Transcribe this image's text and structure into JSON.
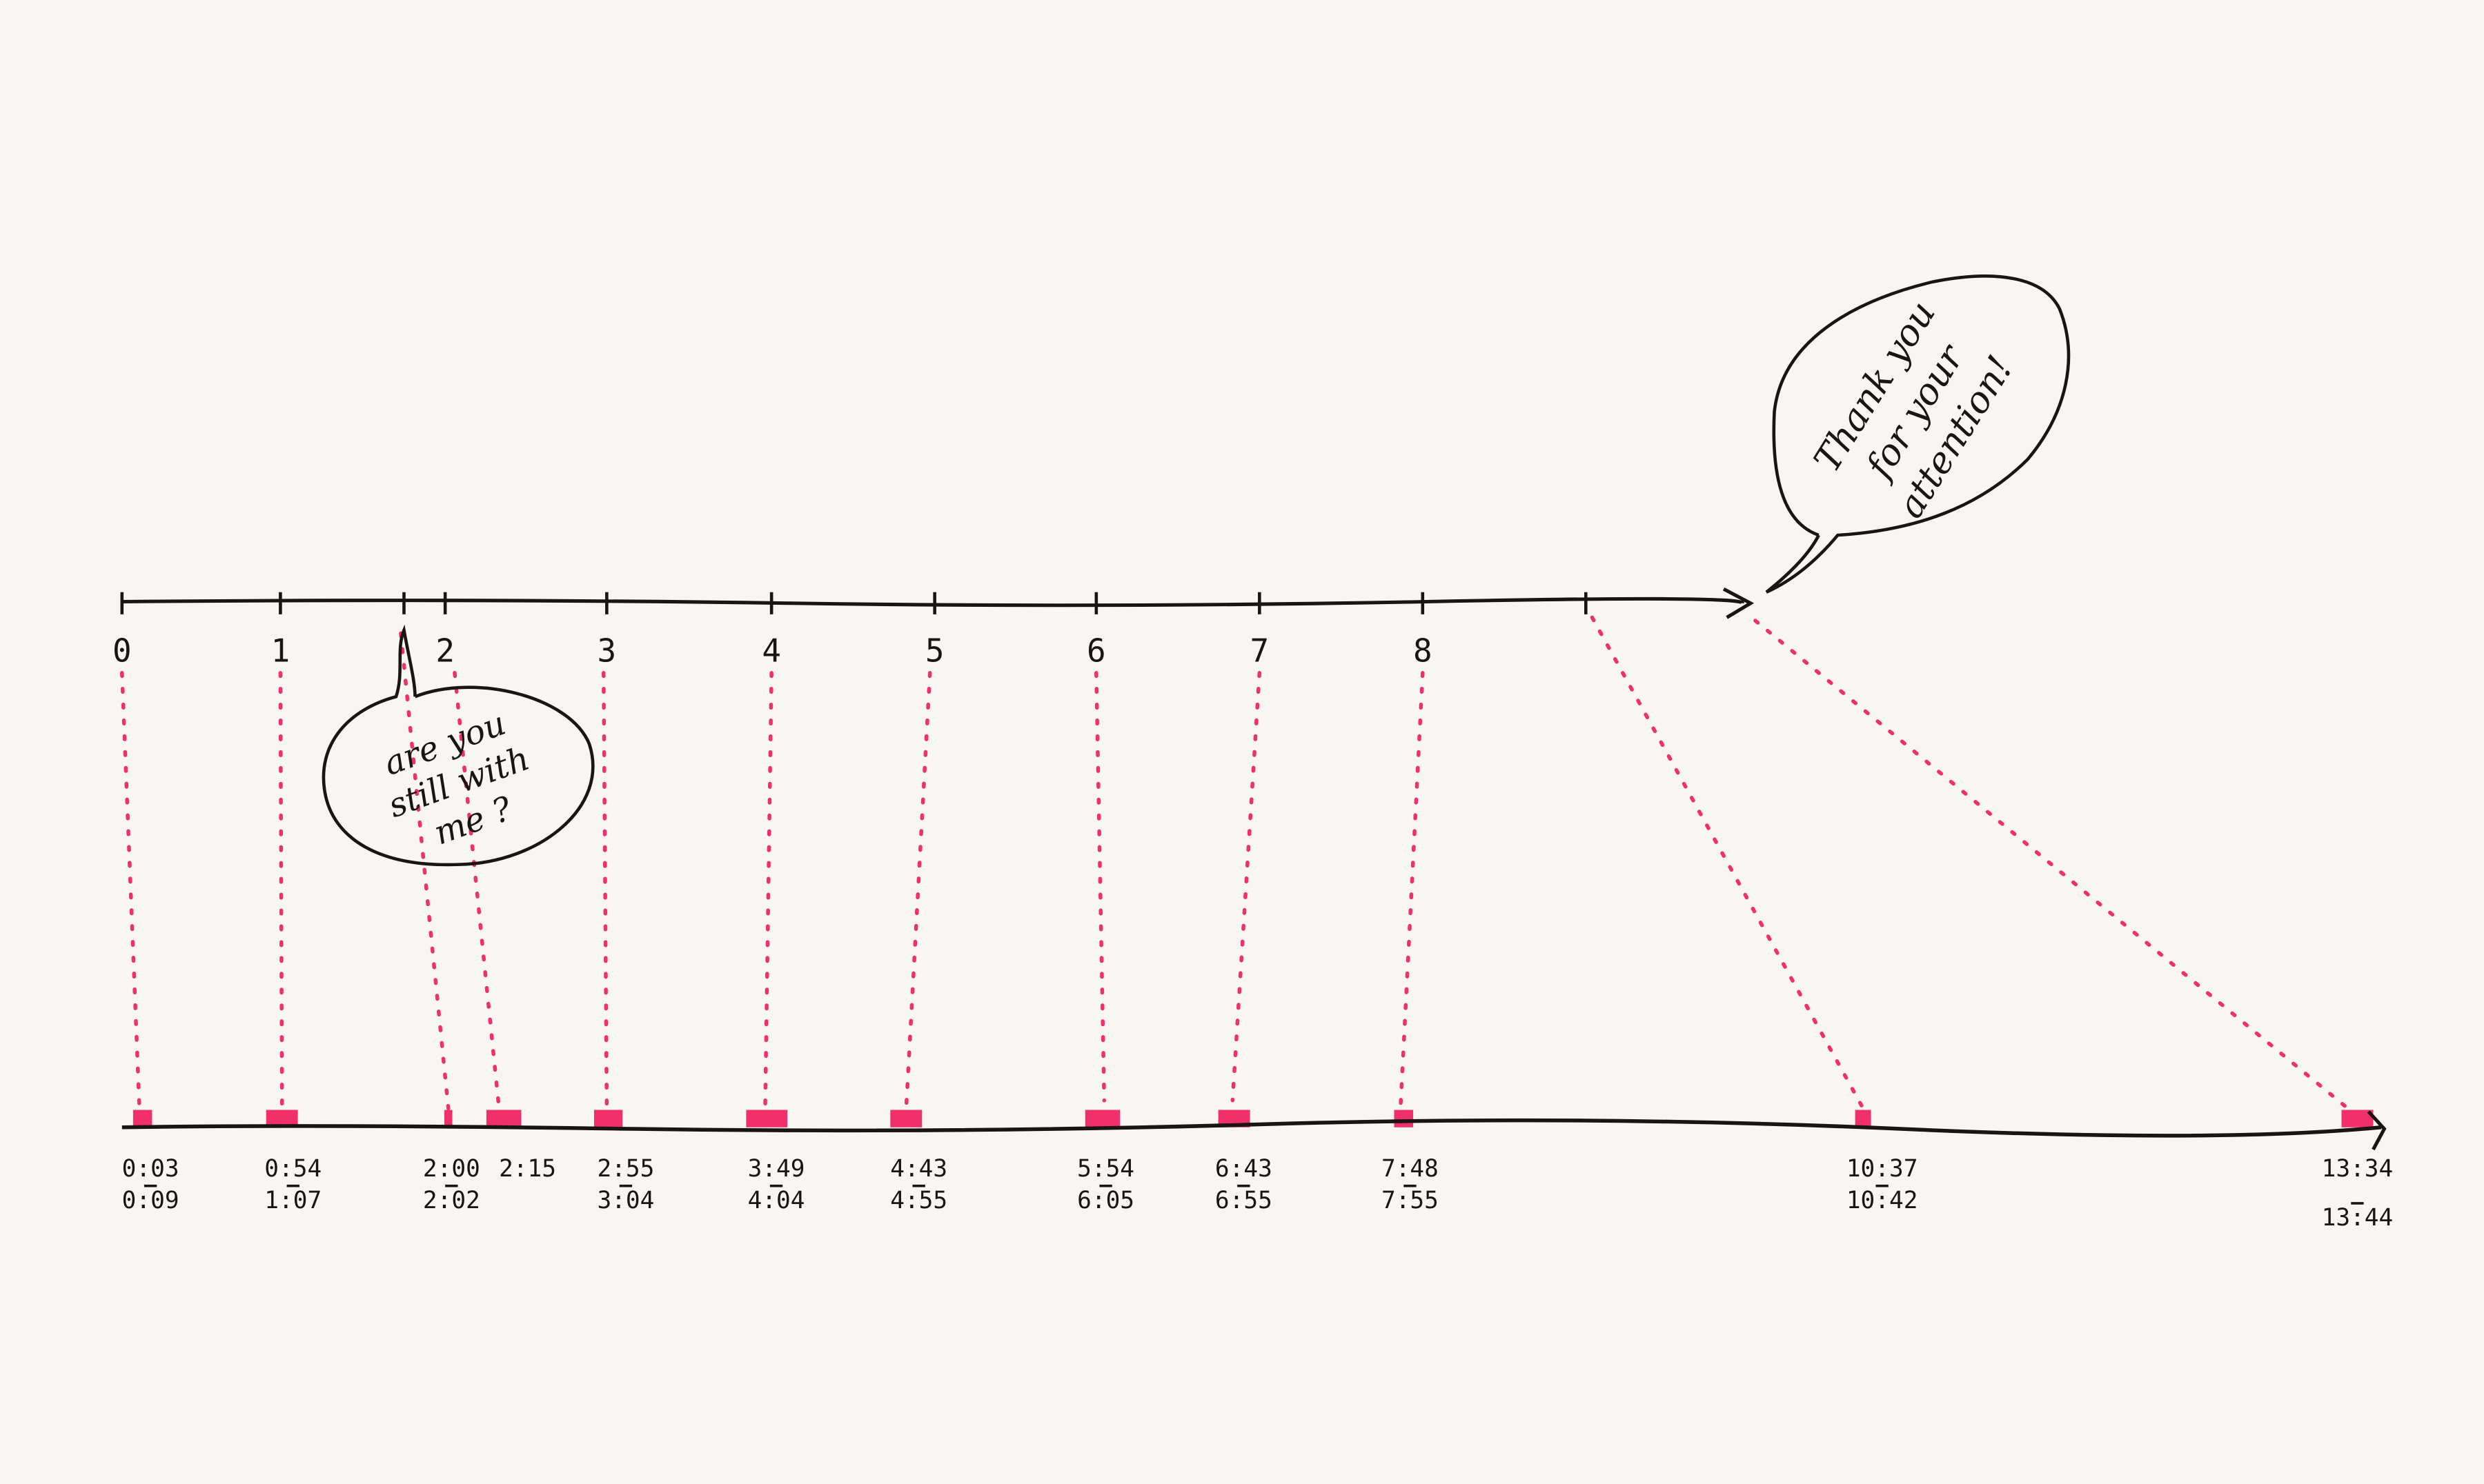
{
  "colors": {
    "ink": "#1a1414",
    "marker": "#f0306a",
    "paper": "#f7f6f3"
  },
  "top_axis": {
    "tick_labels": [
      "0",
      "1",
      "2",
      "3",
      "4",
      "5",
      "6",
      "7",
      "8"
    ]
  },
  "bottom_axis": {
    "labels": [
      {
        "start": "0:03",
        "end": "0:09"
      },
      {
        "start": "0:54",
        "end": "1:07"
      },
      {
        "start": "2:00",
        "end": "2:02"
      },
      {
        "start": "2:15",
        "end": ""
      },
      {
        "start": "2:55",
        "end": "3:04"
      },
      {
        "start": "3:49",
        "end": "4:04"
      },
      {
        "start": "4:43",
        "end": "4:55"
      },
      {
        "start": "5:54",
        "end": "6:05"
      },
      {
        "start": "6:43",
        "end": "6:55"
      },
      {
        "start": "7:48",
        "end": "7:55"
      },
      {
        "start": "10:37",
        "end": "10:42"
      },
      {
        "start": "13:34",
        "end": "13:44"
      }
    ]
  },
  "bubbles": {
    "still_with_me": [
      "are you",
      "still with",
      "me ?"
    ],
    "thank_you": [
      "Thank you",
      "for your",
      "attention!"
    ]
  }
}
